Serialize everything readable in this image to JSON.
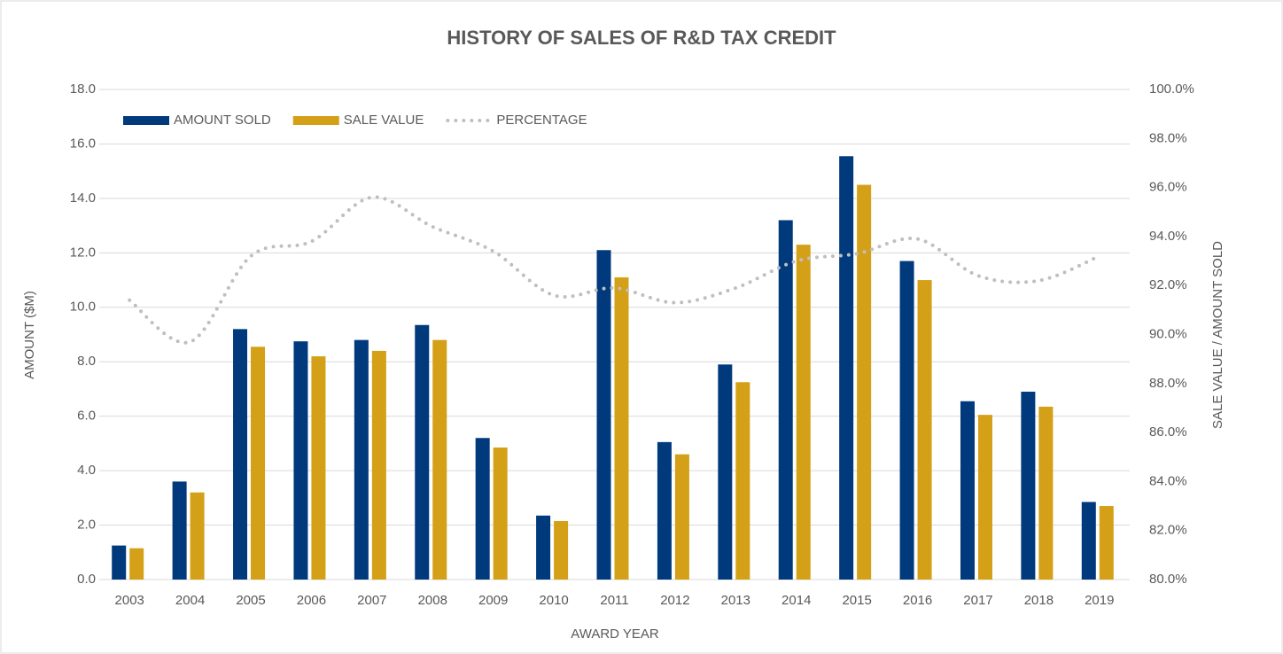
{
  "chart_data": {
    "type": "bar",
    "title": "HISTORY OF SALES OF R&D TAX CREDIT",
    "x_label": "AWARD YEAR",
    "y_label": "AMOUNT ($M)",
    "y2_label": "SALE VALUE / AMOUNT SOLD",
    "categories": [
      "2003",
      "2004",
      "2005",
      "2006",
      "2007",
      "2008",
      "2009",
      "2010",
      "2011",
      "2012",
      "2013",
      "2014",
      "2015",
      "2016",
      "2017",
      "2018",
      "2019"
    ],
    "series": [
      {
        "name": "AMOUNT SOLD",
        "type": "bar",
        "color": "#003a7d",
        "values": [
          1.25,
          3.6,
          9.2,
          8.75,
          8.8,
          9.35,
          5.2,
          2.35,
          12.1,
          5.05,
          7.9,
          13.2,
          15.55,
          11.7,
          6.55,
          6.9,
          2.85
        ]
      },
      {
        "name": "SALE VALUE",
        "type": "bar",
        "color": "#d4a017",
        "values": [
          1.15,
          3.2,
          8.55,
          8.2,
          8.4,
          8.8,
          4.85,
          2.15,
          11.1,
          4.6,
          7.25,
          12.3,
          14.5,
          11.0,
          6.05,
          6.35,
          2.7
        ]
      },
      {
        "name": "PERCENTAGE",
        "type": "line",
        "axis": "y2",
        "color": "#bfbfbf",
        "values": [
          91.4,
          89.7,
          93.2,
          93.8,
          95.6,
          94.4,
          93.4,
          91.6,
          91.9,
          91.3,
          91.9,
          93.0,
          93.3,
          93.9,
          92.4,
          92.2,
          93.2
        ]
      }
    ],
    "ylim": [
      0,
      18
    ],
    "yticks": [
      {
        "value": 0,
        "label": "0.0"
      },
      {
        "value": 2,
        "label": "2.0"
      },
      {
        "value": 4,
        "label": "4.0"
      },
      {
        "value": 6,
        "label": "6.0"
      },
      {
        "value": 8,
        "label": "8.0"
      },
      {
        "value": 10,
        "label": "10.0"
      },
      {
        "value": 12,
        "label": "12.0"
      },
      {
        "value": 14,
        "label": "14.0"
      },
      {
        "value": 16,
        "label": "16.0"
      },
      {
        "value": 18,
        "label": "18.0"
      }
    ],
    "y2lim": [
      80,
      100
    ],
    "y2ticks": [
      {
        "value": 80,
        "label": "80.0%"
      },
      {
        "value": 82,
        "label": "82.0%"
      },
      {
        "value": 84,
        "label": "84.0%"
      },
      {
        "value": 86,
        "label": "86.0%"
      },
      {
        "value": 88,
        "label": "88.0%"
      },
      {
        "value": 90,
        "label": "90.0%"
      },
      {
        "value": 92,
        "label": "92.0%"
      },
      {
        "value": 94,
        "label": "94.0%"
      },
      {
        "value": 96,
        "label": "96.0%"
      },
      {
        "value": 98,
        "label": "98.0%"
      },
      {
        "value": 100,
        "label": "100.0%"
      }
    ],
    "grid": true,
    "legend": "top-left"
  }
}
